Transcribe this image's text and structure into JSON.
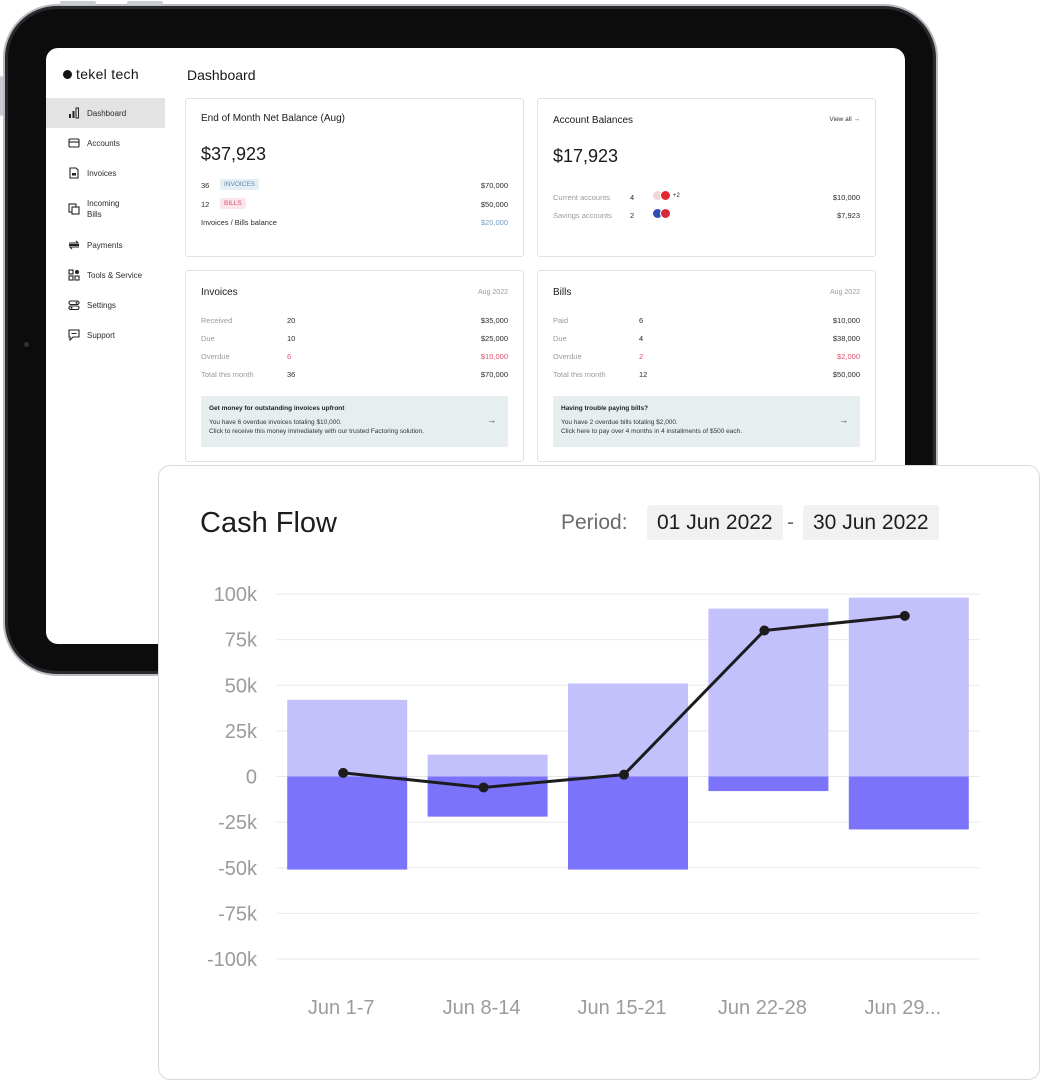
{
  "brand": {
    "name": "tekel tech"
  },
  "page_title": "Dashboard",
  "sidebar": {
    "items": [
      {
        "label": "Dashboard",
        "icon": "bar-chart-icon",
        "active": true
      },
      {
        "label": "Accounts",
        "icon": "wallet-icon",
        "active": false
      },
      {
        "label": "Invoices",
        "icon": "invoice-icon",
        "active": false
      },
      {
        "label_line1": "Incoming",
        "label_line2": "Bills",
        "icon": "bill-icon",
        "active": false
      },
      {
        "label": "Payments",
        "icon": "payments-icon",
        "active": false
      },
      {
        "label": "Tools & Service",
        "icon": "tools-icon",
        "active": false
      },
      {
        "label": "Settings",
        "icon": "settings-icon",
        "active": false
      },
      {
        "label": "Support",
        "icon": "support-icon",
        "active": false
      }
    ]
  },
  "net_balance": {
    "title": "End of Month Net Balance (Aug)",
    "amount": "$37,923",
    "rows": [
      {
        "count": "36",
        "tag": "INVOICES",
        "value": "$70,000"
      },
      {
        "count": "12",
        "tag": "BILLS",
        "value": "$50,000"
      }
    ],
    "balance_label": "Invoices / Bills balance",
    "balance_value": "$20,000"
  },
  "account_balances": {
    "title": "Account Balances",
    "view_all": "View all →",
    "amount": "$17,923",
    "rows": [
      {
        "label": "Current accounts",
        "count": "4",
        "extra": "+2",
        "value": "$10,000"
      },
      {
        "label": "Savings accounts",
        "count": "2",
        "value": "$7,923"
      }
    ]
  },
  "invoices": {
    "title": "Invoices",
    "date": "Aug 2022",
    "rows": [
      {
        "label": "Received",
        "count": "20",
        "value": "$35,000"
      },
      {
        "label": "Due",
        "count": "10",
        "value": "$25,000"
      },
      {
        "label": "Overdue",
        "count": "6",
        "value": "$10,000"
      },
      {
        "label": "Total this month",
        "count": "36",
        "value": "$70,000"
      }
    ],
    "promo": {
      "title": "Get money for outstanding invoices upfront",
      "line1": "You have 6 overdue invoices totaling $10,000.",
      "line2": "Click to receive this money immediately with our trusted Factoring solution.",
      "arrow": "→"
    }
  },
  "bills": {
    "title": "Bills",
    "date": "Aug 2022",
    "rows": [
      {
        "label": "Paid",
        "count": "6",
        "value": "$10,000"
      },
      {
        "label": "Due",
        "count": "4",
        "value": "$38,000"
      },
      {
        "label": "Overdue",
        "count": "2",
        "value": "$2,000"
      },
      {
        "label": "Total this month",
        "count": "12",
        "value": "$50,000"
      }
    ],
    "promo": {
      "title": "Having trouble paying bills?",
      "line1": "You have 2 overdue bills totaling $2,000.",
      "line2": "Click here to pay over 4 months in 4 installments of $500 each.",
      "arrow": "→"
    }
  },
  "cash_flow": {
    "title": "Cash Flow",
    "period_label": "Period:",
    "date_from": "01 Jun 2022",
    "separator": "-",
    "date_to": "30 Jun 2022"
  },
  "colors": {
    "income_bar": "#c3c1fc",
    "expense_bar": "#7b74fb",
    "net_line": "#1c1c1e",
    "grid": "#e9e9eb",
    "axis_text": "#9b9b9f",
    "overdue": "#e0506d",
    "link": "#6f9bc4"
  },
  "chart_data": {
    "type": "bar",
    "title": "Cash Flow",
    "categories": [
      "Jun 1-7",
      "Jun 8-14",
      "Jun 15-21",
      "Jun 22-28",
      "Jun 29..."
    ],
    "series": [
      {
        "kind": "bar",
        "values": [
          42,
          12,
          51,
          92,
          98
        ]
      },
      {
        "kind": "bar",
        "values": [
          -51,
          -22,
          -51,
          -8,
          -29
        ]
      },
      {
        "kind": "line",
        "values": [
          2,
          -6,
          1,
          80,
          88
        ]
      }
    ],
    "yticks": [
      "100k",
      "75k",
      "50k",
      "25k",
      "0",
      "-25k",
      "-50k",
      "-75k",
      "-100k"
    ],
    "ylim": [
      -100,
      100
    ],
    "grid": true
  }
}
